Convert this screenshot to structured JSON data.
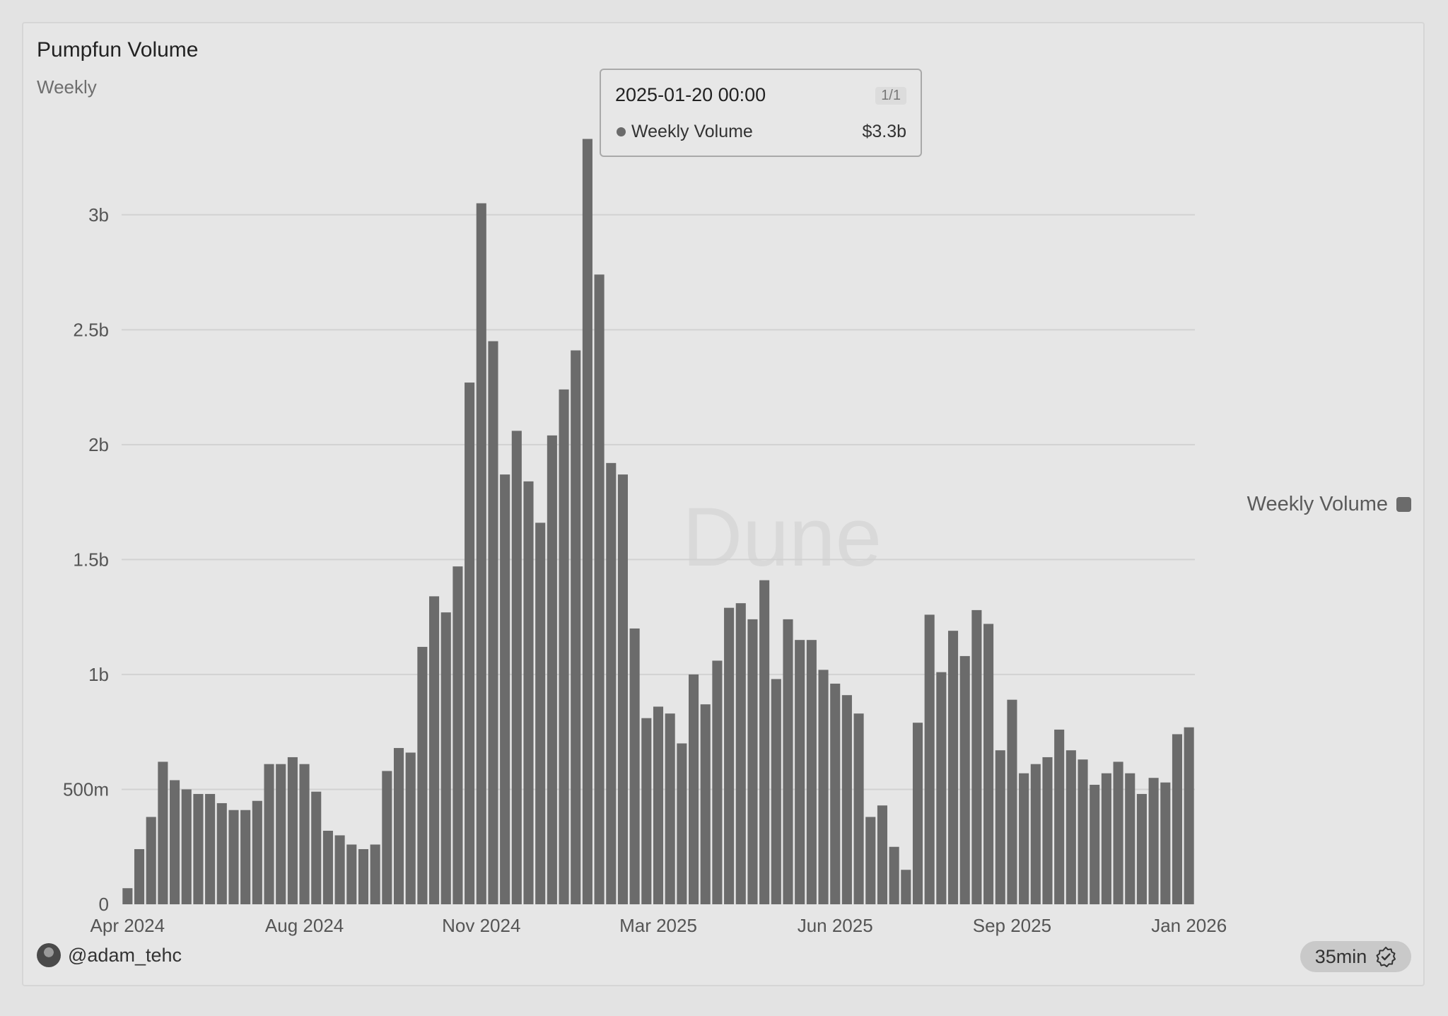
{
  "header": {
    "title": "Pumpfun Volume",
    "subtitle": "Weekly"
  },
  "watermark": "Dune",
  "tooltip": {
    "date": "2025-01-20 00:00",
    "page": "1/1",
    "series": "Weekly Volume",
    "value": "$3.3b"
  },
  "legend": {
    "label": "Weekly Volume",
    "color": "#6b6b6b"
  },
  "footer": {
    "author": "@adam_tehc",
    "freshness": "35min"
  },
  "colors": {
    "bar": "#6b6b6b",
    "grid": "#d2d2d2",
    "axis_text": "#555555"
  },
  "chart_data": {
    "type": "bar",
    "title": "Pumpfun Volume",
    "subtitle": "Weekly",
    "series": [
      {
        "name": "Weekly Volume",
        "values": [
          0.07,
          0.24,
          0.38,
          0.62,
          0.54,
          0.5,
          0.48,
          0.48,
          0.44,
          0.41,
          0.41,
          0.45,
          0.61,
          0.61,
          0.64,
          0.61,
          0.49,
          0.32,
          0.3,
          0.26,
          0.24,
          0.26,
          0.58,
          0.68,
          0.66,
          1.12,
          1.34,
          1.27,
          1.47,
          2.27,
          3.05,
          2.45,
          1.87,
          2.06,
          1.84,
          1.66,
          2.04,
          2.24,
          2.41,
          3.33,
          2.74,
          1.92,
          1.87,
          1.2,
          0.81,
          0.86,
          0.83,
          0.7,
          1.0,
          0.87,
          1.06,
          1.29,
          1.31,
          1.24,
          1.41,
          0.98,
          1.24,
          1.15,
          1.15,
          1.02,
          0.96,
          0.91,
          0.83,
          0.38,
          0.43,
          0.25,
          0.15,
          0.79,
          1.26,
          1.01,
          1.19,
          1.08,
          1.28,
          1.22,
          0.67,
          0.89,
          0.57,
          0.61,
          0.64,
          0.76,
          0.67,
          0.63,
          0.52,
          0.57,
          0.62,
          0.57,
          0.48,
          0.55,
          0.53,
          0.74,
          0.77
        ]
      }
    ],
    "x_tick_labels": [
      "Apr 2024",
      "Aug 2024",
      "Nov 2024",
      "Mar 2025",
      "Jun 2025",
      "Sep 2025",
      "Jan 2026"
    ],
    "x_tick_index": [
      0,
      15,
      30,
      45,
      60,
      75,
      90
    ],
    "y_ticks": [
      0,
      0.5,
      1,
      1.5,
      2,
      2.5,
      3
    ],
    "y_tick_labels": [
      "0",
      "500m",
      "1b",
      "1.5b",
      "2b",
      "2.5b",
      "3b"
    ],
    "y_unit": "billions USD",
    "ylim": [
      0,
      3.35
    ],
    "highlighted_week": "2025-01-20",
    "grid": true,
    "legend_position": "right"
  }
}
